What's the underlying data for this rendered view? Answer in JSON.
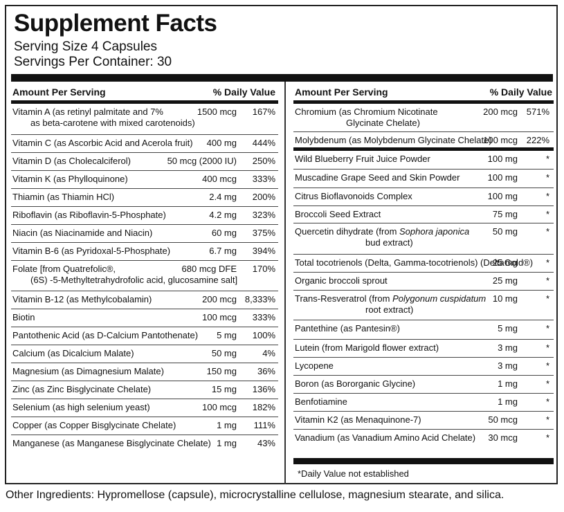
{
  "title": "Supplement Facts",
  "serving_size": "Serving Size 4 Capsules",
  "servings_per_container": "Servings Per Container: 30",
  "header": {
    "amount_per_serving": "Amount Per Serving",
    "daily_value": "% Daily Value"
  },
  "left_rows": [
    {
      "name": "Vitamin A  (as retinyl palmitate and 7%",
      "name2": "as beta-carotene with mixed carotenoids)",
      "amount": "1500 mcg",
      "dv": "167%"
    },
    {
      "name": "Vitamin C (as Ascorbic Acid and Acerola fruit)",
      "amount": "400 mg",
      "dv": "444%"
    },
    {
      "name": "Vitamin D (as Cholecalciferol)",
      "amount": "50 mcg (2000 IU)",
      "dv": "250%"
    },
    {
      "name": "Vitamin K (as Phylloquinone)",
      "amount": "400 mcg",
      "dv": "333%"
    },
    {
      "name": "Thiamin (as Thiamin HCl)",
      "amount": "2.4 mg",
      "dv": "200%"
    },
    {
      "name": "Riboflavin (as Riboflavin-5-Phosphate)",
      "amount": "4.2 mg",
      "dv": "323%"
    },
    {
      "name": "Niacin (as Niacinamide and Niacin)",
      "amount": "60 mg",
      "dv": "375%"
    },
    {
      "name": "Vitamin B-6 (as Pyridoxal-5-Phosphate)",
      "amount": "6.7 mg",
      "dv": "394%"
    },
    {
      "name": "Folate [from Quatrefolic®,",
      "name2": "(6S) -5-Methyltetrahydrofolic acid, glucosamine salt]",
      "amount": "680 mcg DFE",
      "dv": "170%"
    },
    {
      "name": "Vitamin B-12 (as Methylcobalamin)",
      "amount": "200 mcg",
      "dv": "8,333%"
    },
    {
      "name": "Biotin",
      "amount": "100 mcg",
      "dv": "333%"
    },
    {
      "name": "Pantothenic Acid (as D-Calcium Pantothenate)",
      "amount": "5 mg",
      "dv": "100%"
    },
    {
      "name": "Calcium (as Dicalcium Malate)",
      "amount": "50 mg",
      "dv": "4%"
    },
    {
      "name": "Magnesium (as Dimagnesium Malate)",
      "amount": "150 mg",
      "dv": "36%"
    },
    {
      "name": "Zinc (as Zinc Bisglycinate Chelate)",
      "amount": "15 mg",
      "dv": "136%"
    },
    {
      "name": "Selenium (as high selenium yeast)",
      "amount": "100 mcg",
      "dv": "182%"
    },
    {
      "name": "Copper (as Copper Bisglycinate Chelate)",
      "amount": "1 mg",
      "dv": "111%"
    },
    {
      "name": "Manganese  (as Manganese Bisglycinate Chelate)",
      "amount": "1 mg",
      "dv": "43%"
    }
  ],
  "right_rows": [
    {
      "name": "Chromium (as Chromium Nicotinate",
      "name2": "Glycinate Chelate)",
      "amount": "200 mcg",
      "dv": "571%"
    },
    {
      "name": "Molybdenum (as Molybdenum Glycinate Chelate)",
      "amount": "100 mcg",
      "dv": "222%"
    },
    {
      "name": "Wild Blueberry Fruit Juice Powder",
      "amount": "100 mg",
      "dv": "*"
    },
    {
      "name": "Muscadine Grape Seed and Skin Powder",
      "amount": "100 mg",
      "dv": "*"
    },
    {
      "name": "Citrus Bioflavonoids Complex",
      "amount": "100 mg",
      "dv": "*"
    },
    {
      "name": "Broccoli Seed Extract",
      "amount": "75 mg",
      "dv": "*"
    },
    {
      "name": "Quercetin dihydrate (from ",
      "name_italic": "Sophora japonica",
      "name2": "bud extract)",
      "amount": "50 mg",
      "dv": "*"
    },
    {
      "name": "Total tocotrienols (Delta, Gamma-tocotrienols) (DeltaGold®)",
      "amount": "25 mg",
      "dv": "*"
    },
    {
      "name": "Organic broccoli sprout",
      "amount": "25 mg",
      "dv": "*"
    },
    {
      "name": "Trans-Resveratrol (from ",
      "name_italic": "Polygonum cuspidatum",
      "name2": "root extract)",
      "amount": "10 mg",
      "dv": "*"
    },
    {
      "name": "Pantethine (as Pantesin®)",
      "amount": "5 mg",
      "dv": "*"
    },
    {
      "name": "Lutein (from Marigold flower extract)",
      "amount": "3 mg",
      "dv": "*"
    },
    {
      "name": "Lycopene",
      "amount": "3 mg",
      "dv": "*"
    },
    {
      "name": "Boron (as Bororganic Glycine)",
      "amount": "1 mg",
      "dv": "*"
    },
    {
      "name": "Benfotiamine",
      "amount": "1 mg",
      "dv": "*"
    },
    {
      "name": "Vitamin K2 (as Menaquinone-7)",
      "amount": "50 mcg",
      "dv": "*"
    },
    {
      "name": "Vanadium  (as Vanadium Amino Acid Chelate)",
      "amount": "30 mcg",
      "dv": "*"
    }
  ],
  "footnote": "*Daily Value not established",
  "other_ingredients": "Other Ingredients: Hypromellose (capsule), microcrystalline cellulose, magnesium stearate, and silica."
}
